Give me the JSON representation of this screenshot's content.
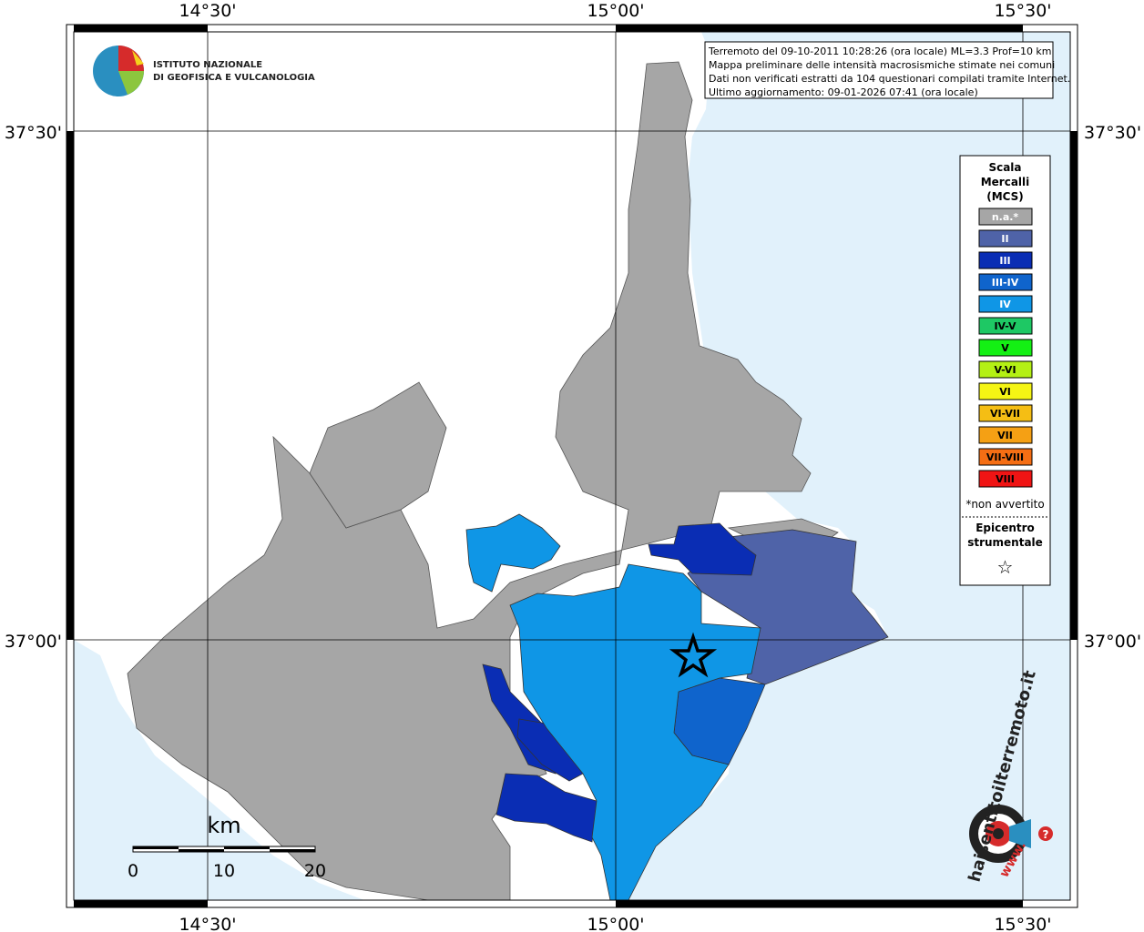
{
  "graticule": {
    "top": [
      "14°30'",
      "15°00'",
      "15°30'"
    ],
    "bottom": [
      "14°30'",
      "15°00'",
      "15°30'"
    ],
    "left": [
      "37°30'",
      "37°00'"
    ],
    "right": [
      "37°30'",
      "37°00'"
    ]
  },
  "logo": {
    "line1": "ISTITUTO NAZIONALE",
    "line2": "DI GEOFISICA E VULCANOLOGIA"
  },
  "info_box": {
    "lines": [
      "Terremoto del 09-10-2011 10:28:26 (ora locale) ML=3.3 Prof=10 km",
      "Mappa preliminare delle intensità macrosismiche stimate nei comuni",
      "Dati non verificati estratti da 104 questionari compilati tramite Internet.",
      "Ultimo aggiornamento: 09-01-2026 07:41 (ora locale)"
    ]
  },
  "legend": {
    "title": [
      "Scala",
      "Mercalli",
      "(MCS)"
    ],
    "items": [
      {
        "label": "n.a.*",
        "color": "#a6a6a6",
        "text_color": "#ffffff"
      },
      {
        "label": "II",
        "color": "#4f63a8",
        "text_color": "#ffffff"
      },
      {
        "label": "III",
        "color": "#0a2db4",
        "text_color": "#ffffff"
      },
      {
        "label": "III-IV",
        "color": "#0f64cc",
        "text_color": "#ffffff"
      },
      {
        "label": "IV",
        "color": "#0f96e6",
        "text_color": "#ffffff"
      },
      {
        "label": "IV-V",
        "color": "#1ec864",
        "text_color": "#000000"
      },
      {
        "label": "V",
        "color": "#14f014",
        "text_color": "#000000"
      },
      {
        "label": "V-VI",
        "color": "#b4f014",
        "text_color": "#000000"
      },
      {
        "label": "VI",
        "color": "#f5f514",
        "text_color": "#000000"
      },
      {
        "label": "VI-VII",
        "color": "#f5be14",
        "text_color": "#000000"
      },
      {
        "label": "VII",
        "color": "#f5a014",
        "text_color": "#000000"
      },
      {
        "label": "VII-VIII",
        "color": "#f56e14",
        "text_color": "#000000"
      },
      {
        "label": "VIII",
        "color": "#f01414",
        "text_color": "#000000"
      }
    ],
    "note": "*non avvertito",
    "epicenter": [
      "Epicentro",
      "strumentale"
    ],
    "epicenter_symbol": "☆"
  },
  "scale_bar": {
    "unit": "km",
    "ticks": [
      "0",
      "10",
      "20"
    ]
  },
  "haisentito": {
    "text": "haisentitoilterremoto.it",
    "www": "www.",
    "question": "?"
  }
}
